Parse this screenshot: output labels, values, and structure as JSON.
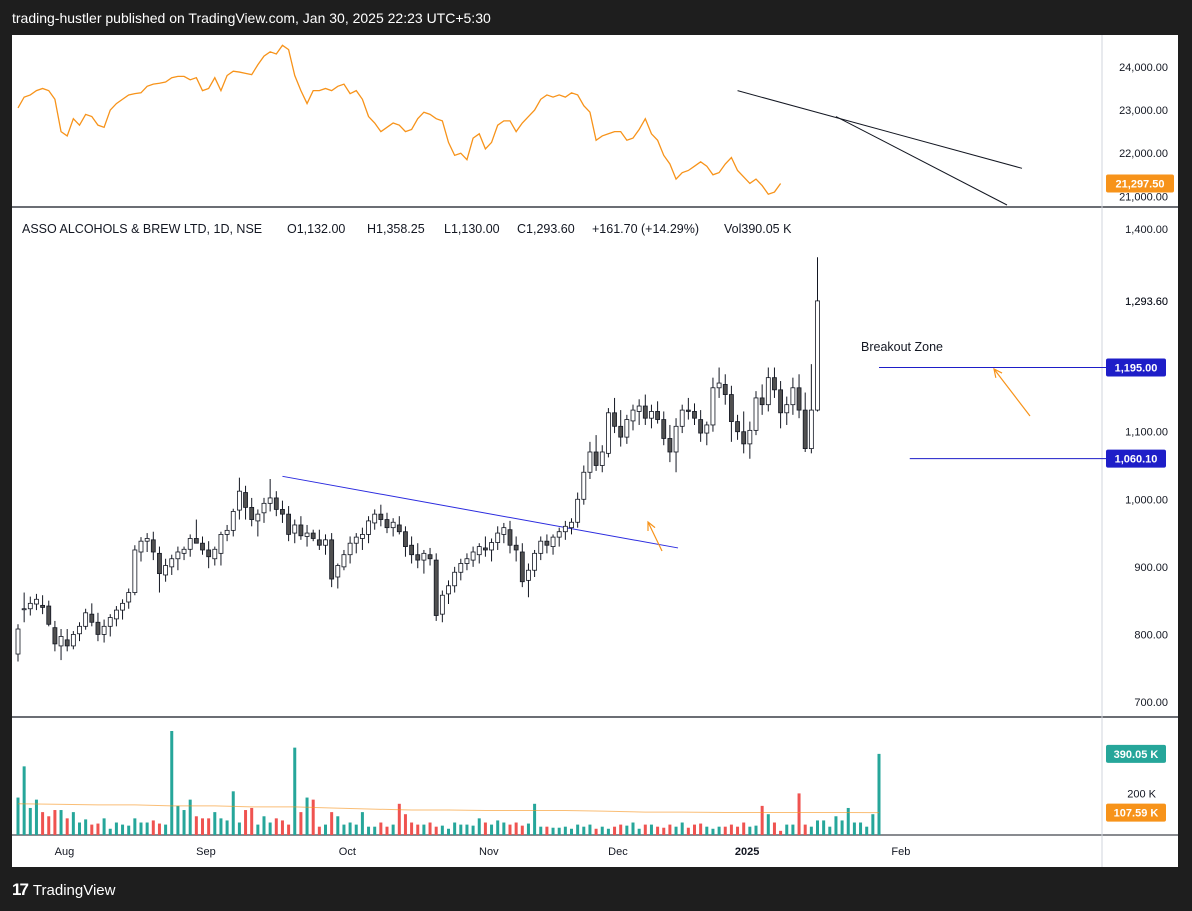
{
  "header": {
    "publisher_line": "trading-hustler published on TradingView.com, Jan 30, 2025 22:23 UTC+5:30"
  },
  "footer": {
    "brand": "TradingView",
    "logo_glyph": "17"
  },
  "colors": {
    "up": "#ffffff",
    "down": "#505050",
    "wick": "#131722",
    "index_line": "#f7931a",
    "trend_blue": "#2b2bdf",
    "zone_blue": "#1e1ec8",
    "arrow": "#f7931a",
    "vol_up": "#26a69a",
    "vol_down": "#ef5350",
    "vol_ma": "#f7931a"
  },
  "chart_data": {
    "type": "candlestick",
    "legend": {
      "name": "ASSO ALCOHOLS & BREW LTD, 1D, NSE",
      "open": "O1,132.00",
      "high": "H1,358.25",
      "low": "L1,130.00",
      "close": "C1,293.60",
      "change": "+161.70 (+14.29%)",
      "volume": "Vol390.05 K"
    },
    "x_labels": [
      {
        "label": "Aug",
        "index": 3
      },
      {
        "label": "Sep",
        "index": 26
      },
      {
        "label": "Oct",
        "index": 49
      },
      {
        "label": "Nov",
        "index": 72
      },
      {
        "label": "Dec",
        "index": 93
      },
      {
        "label": "2025",
        "index": 114
      },
      {
        "label": "Feb",
        "index": 139
      }
    ],
    "total_slots": 160,
    "price_axis": {
      "ylim": [
        700,
        1400
      ],
      "ticks": [
        "1,400.00",
        "1,293.60",
        "1,195.00",
        "1,100.00",
        "1,060.10",
        "1,000.00",
        "900.00",
        "800.00",
        "700.00"
      ]
    },
    "price_tags": [
      {
        "label": "1,195.00",
        "value": 1195,
        "color": "#1e1ec8"
      },
      {
        "label": "1,060.10",
        "value": 1060.1,
        "color": "#1e1ec8"
      }
    ],
    "current_price_label": "1,293.60",
    "candles": [
      [
        771,
        815,
        760,
        808
      ],
      [
        837,
        862,
        818,
        838
      ],
      [
        838,
        856,
        828,
        846
      ],
      [
        845,
        860,
        836,
        852
      ],
      [
        843,
        858,
        830,
        840
      ],
      [
        842,
        850,
        812,
        815
      ],
      [
        810,
        820,
        775,
        786
      ],
      [
        783,
        808,
        762,
        797
      ],
      [
        792,
        808,
        775,
        783
      ],
      [
        783,
        805,
        778,
        800
      ],
      [
        801,
        818,
        790,
        812
      ],
      [
        812,
        838,
        807,
        832
      ],
      [
        830,
        846,
        812,
        818
      ],
      [
        818,
        832,
        790,
        800
      ],
      [
        800,
        822,
        788,
        812
      ],
      [
        812,
        830,
        797,
        825
      ],
      [
        823,
        842,
        812,
        836
      ],
      [
        836,
        852,
        822,
        846
      ],
      [
        848,
        868,
        838,
        862
      ],
      [
        862,
        932,
        858,
        925
      ],
      [
        922,
        944,
        908,
        938
      ],
      [
        938,
        950,
        922,
        942
      ],
      [
        940,
        952,
        910,
        922
      ],
      [
        920,
        930,
        862,
        890
      ],
      [
        888,
        912,
        878,
        902
      ],
      [
        900,
        918,
        888,
        912
      ],
      [
        912,
        930,
        895,
        922
      ],
      [
        920,
        930,
        910,
        926
      ],
      [
        926,
        948,
        915,
        942
      ],
      [
        942,
        970,
        935,
        935
      ],
      [
        935,
        945,
        918,
        925
      ],
      [
        925,
        938,
        898,
        915
      ],
      [
        912,
        930,
        902,
        926
      ],
      [
        920,
        952,
        902,
        948
      ],
      [
        948,
        962,
        938,
        954
      ],
      [
        954,
        986,
        945,
        982
      ],
      [
        984,
        1032,
        970,
        1012
      ],
      [
        1010,
        1020,
        970,
        988
      ],
      [
        988,
        1002,
        960,
        970
      ],
      [
        968,
        985,
        945,
        978
      ],
      [
        980,
        1002,
        965,
        994
      ],
      [
        994,
        1030,
        982,
        1002
      ],
      [
        1002,
        1012,
        975,
        985
      ],
      [
        985,
        998,
        965,
        978
      ],
      [
        978,
        990,
        938,
        948
      ],
      [
        950,
        970,
        935,
        962
      ],
      [
        962,
        975,
        940,
        946
      ],
      [
        945,
        962,
        930,
        950
      ],
      [
        950,
        955,
        938,
        942
      ],
      [
        940,
        955,
        925,
        932
      ],
      [
        932,
        948,
        918,
        940
      ],
      [
        940,
        950,
        870,
        882
      ],
      [
        885,
        905,
        868,
        902
      ],
      [
        900,
        925,
        895,
        918
      ],
      [
        918,
        945,
        905,
        935
      ],
      [
        935,
        950,
        920,
        944
      ],
      [
        942,
        958,
        925,
        948
      ],
      [
        948,
        975,
        935,
        968
      ],
      [
        965,
        985,
        955,
        978
      ],
      [
        978,
        992,
        960,
        970
      ],
      [
        970,
        980,
        950,
        958
      ],
      [
        958,
        972,
        945,
        966
      ],
      [
        962,
        975,
        948,
        952
      ],
      [
        952,
        960,
        915,
        930
      ],
      [
        932,
        945,
        905,
        918
      ],
      [
        918,
        935,
        898,
        910
      ],
      [
        910,
        925,
        890,
        920
      ],
      [
        918,
        928,
        902,
        912
      ],
      [
        910,
        920,
        820,
        828
      ],
      [
        830,
        865,
        818,
        858
      ],
      [
        860,
        880,
        845,
        872
      ],
      [
        872,
        900,
        862,
        892
      ],
      [
        892,
        912,
        880,
        905
      ],
      [
        905,
        920,
        895,
        912
      ],
      [
        910,
        930,
        900,
        922
      ],
      [
        918,
        935,
        905,
        930
      ],
      [
        928,
        945,
        915,
        925
      ],
      [
        925,
        942,
        908,
        936
      ],
      [
        936,
        960,
        925,
        950
      ],
      [
        948,
        965,
        935,
        958
      ],
      [
        955,
        968,
        920,
        932
      ],
      [
        932,
        945,
        908,
        925
      ],
      [
        922,
        935,
        870,
        878
      ],
      [
        880,
        905,
        855,
        895
      ],
      [
        895,
        925,
        885,
        920
      ],
      [
        920,
        945,
        910,
        938
      ],
      [
        938,
        948,
        920,
        932
      ],
      [
        930,
        948,
        918,
        944
      ],
      [
        944,
        958,
        930,
        952
      ],
      [
        952,
        968,
        940,
        960
      ],
      [
        958,
        972,
        948,
        966
      ],
      [
        966,
        1010,
        958,
        1000
      ],
      [
        1000,
        1050,
        992,
        1040
      ],
      [
        1040,
        1085,
        1030,
        1070
      ],
      [
        1070,
        1095,
        1042,
        1050
      ],
      [
        1050,
        1080,
        1040,
        1070
      ],
      [
        1068,
        1135,
        1062,
        1128
      ],
      [
        1128,
        1150,
        1098,
        1108
      ],
      [
        1108,
        1132,
        1078,
        1092
      ],
      [
        1092,
        1125,
        1082,
        1118
      ],
      [
        1116,
        1140,
        1102,
        1132
      ],
      [
        1130,
        1148,
        1110,
        1138
      ],
      [
        1138,
        1155,
        1110,
        1120
      ],
      [
        1120,
        1140,
        1105,
        1130
      ],
      [
        1130,
        1145,
        1112,
        1118
      ],
      [
        1118,
        1130,
        1080,
        1090
      ],
      [
        1090,
        1110,
        1055,
        1070
      ],
      [
        1070,
        1120,
        1040,
        1108
      ],
      [
        1108,
        1140,
        1098,
        1132
      ],
      [
        1132,
        1150,
        1118,
        1130
      ],
      [
        1130,
        1142,
        1110,
        1120
      ],
      [
        1118,
        1132,
        1085,
        1098
      ],
      [
        1098,
        1115,
        1080,
        1110
      ],
      [
        1110,
        1180,
        1100,
        1165
      ],
      [
        1165,
        1195,
        1150,
        1172
      ],
      [
        1170,
        1185,
        1140,
        1155
      ],
      [
        1155,
        1168,
        1085,
        1115
      ],
      [
        1115,
        1125,
        1088,
        1100
      ],
      [
        1100,
        1130,
        1068,
        1082
      ],
      [
        1082,
        1115,
        1060,
        1102
      ],
      [
        1102,
        1160,
        1095,
        1150
      ],
      [
        1150,
        1170,
        1125,
        1140
      ],
      [
        1140,
        1195,
        1130,
        1180
      ],
      [
        1180,
        1195,
        1150,
        1162
      ],
      [
        1162,
        1175,
        1105,
        1128
      ],
      [
        1128,
        1152,
        1110,
        1140
      ],
      [
        1140,
        1180,
        1125,
        1165
      ],
      [
        1165,
        1185,
        1120,
        1132
      ],
      [
        1132,
        1158,
        1070,
        1075
      ],
      [
        1075,
        1200,
        1068,
        1132
      ],
      [
        1132,
        1358.25,
        1130,
        1293.6
      ]
    ],
    "index_line": {
      "ylim": [
        20800,
        24600
      ],
      "ticks": [
        "24,000.00",
        "23,000.00",
        "22,000.00",
        "21,000.00"
      ],
      "current_label": "21,297.50",
      "values": [
        23050,
        23300,
        23350,
        23450,
        23500,
        23450,
        23250,
        22500,
        22400,
        22800,
        22650,
        22900,
        22850,
        22650,
        22600,
        23000,
        23150,
        23250,
        23350,
        23380,
        23400,
        23550,
        23600,
        23620,
        23650,
        23750,
        23780,
        23780,
        23700,
        23750,
        23450,
        23500,
        23750,
        23450,
        23800,
        23900,
        23880,
        23850,
        23820,
        24050,
        24250,
        24350,
        24300,
        24500,
        24400,
        23800,
        23450,
        23150,
        23450,
        23450,
        23500,
        23450,
        23550,
        23600,
        23380,
        23450,
        23250,
        22850,
        22700,
        22500,
        22600,
        22700,
        22650,
        22500,
        22550,
        22800,
        22950,
        22900,
        22800,
        22750,
        22250,
        21950,
        22000,
        21850,
        22350,
        22450,
        22100,
        22250,
        22650,
        22750,
        22750,
        22500,
        22700,
        22850,
        23000,
        23250,
        23350,
        23300,
        23350,
        23300,
        23400,
        23350,
        23100,
        22950,
        22300,
        22400,
        22450,
        22500,
        22500,
        22300,
        22350,
        22550,
        22800,
        22450,
        22300,
        21950,
        21750,
        21400,
        21550,
        21600,
        21700,
        21800,
        21700,
        21500,
        21550,
        21750,
        21900,
        21600,
        21450,
        21300,
        21400,
        21250,
        21050,
        21100,
        21297.5
      ]
    },
    "volume": {
      "ylim": [
        0,
        500
      ],
      "ticks": [
        "200 K"
      ],
      "current_label": "390.05 K",
      "ma_label": "107.59 K",
      "values": [
        180,
        330,
        130,
        170,
        110,
        90,
        120,
        120,
        80,
        110,
        60,
        75,
        50,
        55,
        80,
        30,
        60,
        50,
        45,
        80,
        60,
        60,
        70,
        55,
        50,
        500,
        140,
        120,
        170,
        90,
        80,
        80,
        110,
        80,
        70,
        210,
        60,
        120,
        130,
        50,
        90,
        60,
        80,
        70,
        50,
        420,
        110,
        180,
        170,
        40,
        50,
        110,
        90,
        50,
        60,
        50,
        110,
        40,
        40,
        60,
        40,
        50,
        150,
        100,
        60,
        50,
        50,
        60,
        40,
        45,
        30,
        60,
        50,
        50,
        45,
        80,
        60,
        50,
        70,
        60,
        50,
        60,
        45,
        55,
        150,
        40,
        40,
        35,
        35,
        40,
        30,
        50,
        40,
        50,
        30,
        40,
        30,
        40,
        50,
        45,
        60,
        30,
        50,
        50,
        40,
        35,
        50,
        40,
        60,
        35,
        50,
        55,
        40,
        30,
        40,
        40,
        50,
        40,
        60,
        40,
        45,
        140,
        100,
        60,
        20,
        50,
        50,
        200,
        50,
        40,
        70,
        70,
        40,
        90,
        70,
        130,
        60,
        60,
        40,
        100,
        390
      ]
    },
    "volume_ma": {
      "values": [
        150,
        148,
        145,
        145,
        140,
        140,
        135,
        135,
        130,
        125,
        120,
        120,
        118,
        118,
        118,
        115,
        110,
        110,
        108,
        108,
        108,
        108,
        107.59
      ]
    },
    "annotations": {
      "breakout_label": "Breakout Zone"
    }
  }
}
